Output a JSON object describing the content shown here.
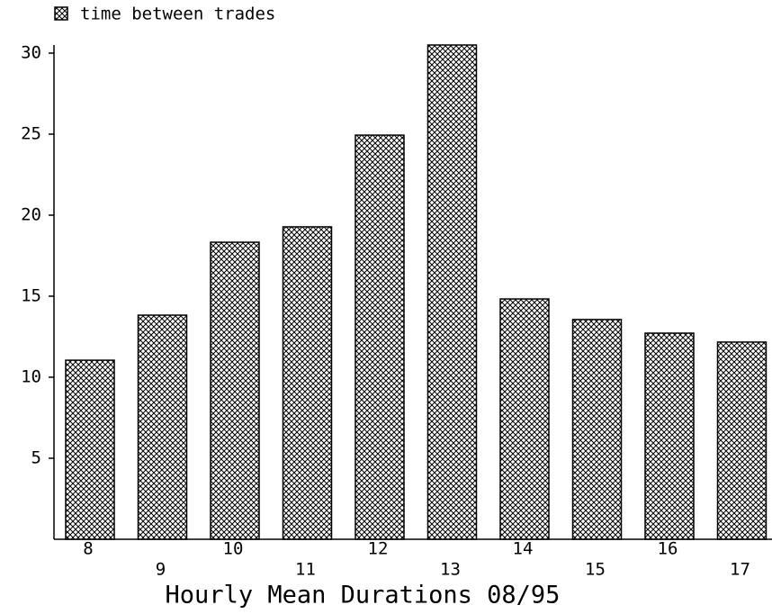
{
  "chart_data": {
    "type": "bar",
    "title": "Hourly Mean Durations 08/95",
    "categories": [
      "8",
      "9",
      "10",
      "11",
      "12",
      "13",
      "14",
      "15",
      "16",
      "17"
    ],
    "series": [
      {
        "name": "time between trades",
        "color": "#000000",
        "values": [
          11.05,
          13.83,
          18.33,
          19.28,
          24.94,
          30.5,
          14.83,
          13.56,
          12.72,
          12.17
        ]
      }
    ],
    "ylim": [
      0,
      30.5
    ],
    "yticks": [
      5,
      10,
      15,
      20,
      25,
      30
    ],
    "legend": "top-left"
  }
}
